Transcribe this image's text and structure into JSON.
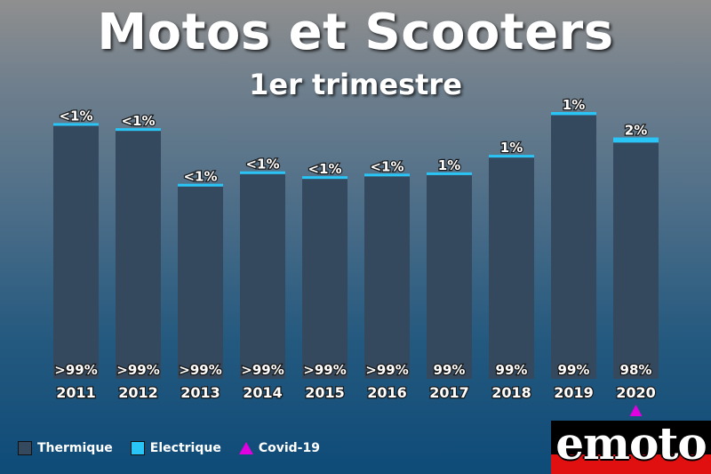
{
  "title": "Motos et Scooters",
  "subtitle": "1er trimestre",
  "legend": {
    "thermique": "Thermique",
    "electrique": "Electrique",
    "covid": "Covid-19"
  },
  "logo_text": "emoto",
  "colors": {
    "thermique": "#34495e",
    "electrique": "#29c5f6",
    "covid": "#e000e0",
    "logo_red": "#e01010",
    "logo_black": "#000000"
  },
  "chart_data": {
    "type": "bar",
    "stacked": true,
    "title": "Motos et Scooters",
    "subtitle": "1er trimestre",
    "categories": [
      "2011",
      "2012",
      "2013",
      "2014",
      "2015",
      "2016",
      "2017",
      "2018",
      "2019",
      "2020"
    ],
    "totals": [
      100,
      98,
      76,
      81,
      79,
      80,
      81,
      88,
      105,
      95
    ],
    "series": [
      {
        "name": "Thermique",
        "values": [
          99.6,
          97.6,
          75.7,
          80.6,
          78.7,
          79.7,
          80.2,
          87.1,
          103.8,
          93.0
        ],
        "labels": [
          ">99%",
          ">99%",
          ">99%",
          ">99%",
          ">99%",
          ">99%",
          "99%",
          "99%",
          "99%",
          "98%"
        ]
      },
      {
        "name": "Electrique",
        "values": [
          0.4,
          0.4,
          0.3,
          0.4,
          0.3,
          0.3,
          0.8,
          0.9,
          1.2,
          2.0
        ],
        "labels": [
          "<1%",
          "<1%",
          "<1%",
          "<1%",
          "<1%",
          "<1%",
          "1%",
          "1%",
          "1%",
          "2%"
        ]
      }
    ],
    "annotations": [
      {
        "category": "2020",
        "marker": "triangle",
        "label": "Covid-19"
      }
    ],
    "ylim": [
      0,
      110
    ],
    "grid": false,
    "legend_position": "bottom-left"
  }
}
